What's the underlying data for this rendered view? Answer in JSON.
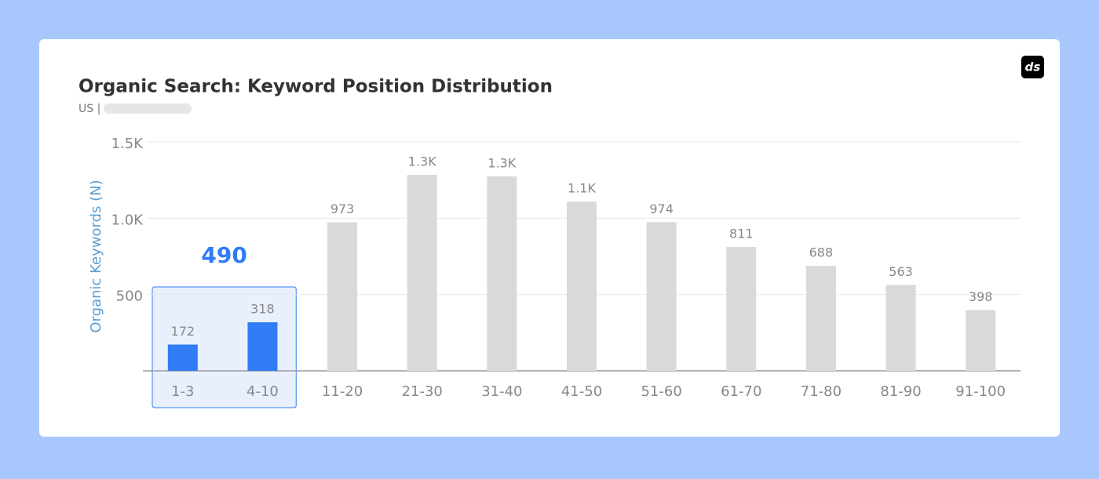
{
  "chart_data": {
    "type": "bar",
    "title": "Organic Search: Keyword Position Distribution",
    "subtitle": "US |",
    "logo": "ds",
    "y_label": "Organic Keywords (N)",
    "annotation": "490",
    "categories": [
      "1-3",
      "4-10",
      "11-20",
      "21-30",
      "31-40",
      "41-50",
      "51-60",
      "61-70",
      "71-80",
      "81-90",
      "91-100"
    ],
    "values": [
      172,
      318,
      973,
      1284,
      1274,
      1109,
      974,
      811,
      688,
      563,
      398
    ],
    "value_labels": [
      "172",
      "318",
      "973",
      "1.3K",
      "1.3K",
      "1.1K",
      "974",
      "811",
      "688",
      "563",
      "398"
    ],
    "colors": [
      "#2f7cf6",
      "#2f7cf6",
      "#d9d9d9",
      "#d9d9d9",
      "#d9d9d9",
      "#d9d9d9",
      "#d9d9d9",
      "#d9d9d9",
      "#d9d9d9",
      "#d9d9d9",
      "#d9d9d9"
    ],
    "highlight_color": "#2f7cf6",
    "ylim": [
      0,
      1500
    ],
    "yticks": [
      500,
      {
        "value": 1000,
        "label": "1.0K"
      },
      {
        "value": 1500,
        "label": "1.5K"
      }
    ],
    "grid": true
  }
}
